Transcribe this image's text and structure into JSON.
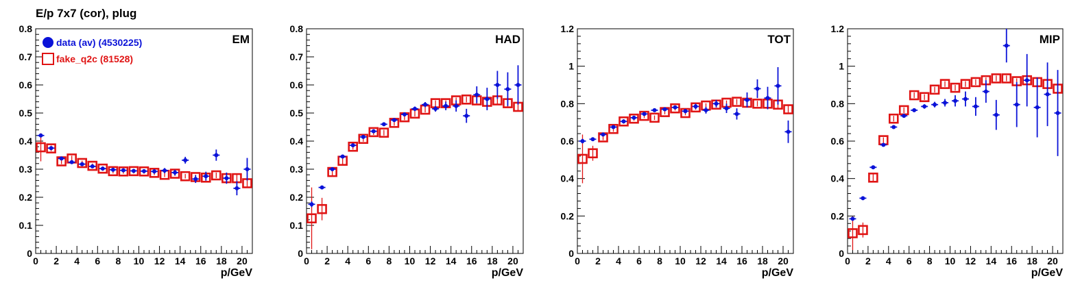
{
  "title": "E/p 7x7 (cor), plug",
  "colors": {
    "data": "#0a12d8",
    "fake": "#e01414",
    "axis": "#000000"
  },
  "legend": [
    {
      "label": "data (av) (4530225)",
      "series": "data",
      "marker": "filled-circle"
    },
    {
      "label": "fake_q2c (81528)",
      "series": "fake",
      "marker": "open-square"
    }
  ],
  "chart_data": [
    {
      "type": "scatter",
      "label": "EM",
      "xlabel": "p/GeV",
      "xlim": [
        0,
        21
      ],
      "ylim": [
        0,
        0.8
      ],
      "xticks": [
        "0",
        "2",
        "4",
        "6",
        "8",
        "10",
        "12",
        "14",
        "16",
        "18",
        "20"
      ],
      "yticks": [
        "0",
        "0.1",
        "0.2",
        "0.3",
        "0.4",
        "0.5",
        "0.6",
        "0.7",
        "0.8"
      ],
      "x": [
        0.5,
        1.5,
        2.5,
        3.5,
        4.5,
        5.5,
        6.5,
        7.5,
        8.5,
        9.5,
        10.5,
        11.5,
        12.5,
        13.5,
        14.5,
        15.5,
        16.5,
        17.5,
        18.5,
        19.5,
        20.5
      ],
      "series": [
        {
          "name": "data (av) (4530225)",
          "values": [
            0.42,
            0.375,
            0.338,
            0.325,
            0.318,
            0.31,
            0.302,
            0.298,
            0.296,
            0.294,
            0.293,
            0.292,
            0.295,
            0.288,
            0.332,
            0.265,
            0.275,
            0.35,
            0.268,
            0.232,
            0.3
          ],
          "errors": [
            0.006,
            0.006,
            0.005,
            0.005,
            0.005,
            0.005,
            0.005,
            0.006,
            0.006,
            0.006,
            0.007,
            0.008,
            0.009,
            0.01,
            0.012,
            0.014,
            0.016,
            0.02,
            0.02,
            0.025,
            0.04
          ]
        },
        {
          "name": "fake_q2c (81528)",
          "values": [
            0.378,
            0.374,
            0.328,
            0.338,
            0.322,
            0.312,
            0.302,
            0.293,
            0.292,
            0.293,
            0.292,
            0.287,
            0.28,
            0.284,
            0.275,
            0.272,
            0.27,
            0.278,
            0.268,
            0.268,
            0.25
          ],
          "errors": [
            0.05,
            0.01,
            0.01,
            0.01,
            0.008,
            0.008,
            0.008,
            0.008,
            0.008,
            0.008,
            0.008,
            0.008,
            0.008,
            0.008,
            0.008,
            0.008,
            0.01,
            0.01,
            0.01,
            0.012,
            0.015
          ]
        }
      ]
    },
    {
      "type": "scatter",
      "label": "HAD",
      "xlabel": "p/GeV",
      "xlim": [
        0,
        21
      ],
      "ylim": [
        0,
        0.8
      ],
      "xticks": [
        "0",
        "2",
        "4",
        "6",
        "8",
        "10",
        "12",
        "14",
        "16",
        "18",
        "20"
      ],
      "yticks": [
        "0",
        "0.1",
        "0.2",
        "0.3",
        "0.4",
        "0.5",
        "0.6",
        "0.7",
        "0.8"
      ],
      "x": [
        0.5,
        1.5,
        2.5,
        3.5,
        4.5,
        5.5,
        6.5,
        7.5,
        8.5,
        9.5,
        10.5,
        11.5,
        12.5,
        13.5,
        14.5,
        15.5,
        16.5,
        17.5,
        18.5,
        19.5,
        20.5
      ],
      "series": [
        {
          "name": "data (av) (4530225)",
          "values": [
            0.175,
            0.235,
            0.3,
            0.345,
            0.385,
            0.415,
            0.435,
            0.46,
            0.475,
            0.495,
            0.515,
            0.53,
            0.515,
            0.525,
            0.525,
            0.49,
            0.565,
            0.55,
            0.6,
            0.585,
            0.6
          ],
          "errors": [
            0.01,
            0.005,
            0.005,
            0.005,
            0.005,
            0.005,
            0.005,
            0.006,
            0.006,
            0.007,
            0.008,
            0.009,
            0.01,
            0.015,
            0.02,
            0.025,
            0.03,
            0.04,
            0.05,
            0.06,
            0.07
          ]
        },
        {
          "name": "fake_q2c (81528)",
          "values": [
            0.125,
            0.158,
            0.29,
            0.33,
            0.38,
            0.408,
            0.432,
            0.43,
            0.465,
            0.485,
            0.498,
            0.512,
            0.535,
            0.535,
            0.545,
            0.548,
            0.545,
            0.54,
            0.545,
            0.535,
            0.522
          ],
          "errors": [
            0.11,
            0.04,
            0.015,
            0.012,
            0.01,
            0.01,
            0.01,
            0.01,
            0.01,
            0.01,
            0.01,
            0.01,
            0.01,
            0.01,
            0.01,
            0.01,
            0.012,
            0.012,
            0.012,
            0.015,
            0.015
          ]
        }
      ]
    },
    {
      "type": "scatter",
      "label": "TOT",
      "xlabel": "p/GeV",
      "xlim": [
        0,
        21
      ],
      "ylim": [
        0,
        1.2
      ],
      "xticks": [
        "0",
        "2",
        "4",
        "6",
        "8",
        "10",
        "12",
        "14",
        "16",
        "18",
        "20"
      ],
      "yticks": [
        "0",
        "0.2",
        "0.4",
        "0.6",
        "0.8",
        "1",
        "1.2"
      ],
      "x": [
        0.5,
        1.5,
        2.5,
        3.5,
        4.5,
        5.5,
        6.5,
        7.5,
        8.5,
        9.5,
        10.5,
        11.5,
        12.5,
        13.5,
        14.5,
        15.5,
        16.5,
        17.5,
        18.5,
        19.5,
        20.5
      ],
      "series": [
        {
          "name": "data (av) (4530225)",
          "values": [
            0.6,
            0.61,
            0.635,
            0.675,
            0.705,
            0.725,
            0.745,
            0.765,
            0.77,
            0.78,
            0.76,
            0.785,
            0.765,
            0.8,
            0.775,
            0.745,
            0.82,
            0.88,
            0.83,
            0.895,
            0.65
          ],
          "errors": [
            0.012,
            0.008,
            0.008,
            0.008,
            0.008,
            0.008,
            0.008,
            0.008,
            0.008,
            0.01,
            0.012,
            0.015,
            0.018,
            0.02,
            0.025,
            0.03,
            0.04,
            0.05,
            0.06,
            0.1,
            0.06
          ]
        },
        {
          "name": "fake_q2c (81528)",
          "values": [
            0.505,
            0.535,
            0.62,
            0.665,
            0.705,
            0.72,
            0.735,
            0.725,
            0.755,
            0.775,
            0.75,
            0.78,
            0.79,
            0.795,
            0.805,
            0.81,
            0.805,
            0.8,
            0.8,
            0.795,
            0.77
          ],
          "errors": [
            0.13,
            0.04,
            0.015,
            0.015,
            0.012,
            0.012,
            0.012,
            0.012,
            0.012,
            0.012,
            0.012,
            0.012,
            0.012,
            0.012,
            0.012,
            0.015,
            0.015,
            0.015,
            0.015,
            0.02,
            0.02
          ]
        }
      ]
    },
    {
      "type": "scatter",
      "label": "MIP",
      "xlabel": "p/GeV",
      "xlim": [
        0,
        21
      ],
      "ylim": [
        0,
        1.2
      ],
      "xticks": [
        "0",
        "2",
        "4",
        "6",
        "8",
        "10",
        "12",
        "14",
        "16",
        "18",
        "20"
      ],
      "yticks": [
        "0",
        "0.2",
        "0.4",
        "0.6",
        "0.8",
        "1",
        "1.2"
      ],
      "x": [
        0.5,
        1.5,
        2.5,
        3.5,
        4.5,
        5.5,
        6.5,
        7.5,
        8.5,
        9.5,
        10.5,
        11.5,
        12.5,
        13.5,
        14.5,
        15.5,
        16.5,
        17.5,
        18.5,
        19.5,
        20.5
      ],
      "series": [
        {
          "name": "data (av) (4530225)",
          "values": [
            0.185,
            0.295,
            0.46,
            0.58,
            0.675,
            0.735,
            0.765,
            0.785,
            0.795,
            0.805,
            0.815,
            0.825,
            0.785,
            0.865,
            0.74,
            1.11,
            0.795,
            0.925,
            0.78,
            0.85,
            0.75
          ],
          "errors": [
            0.01,
            0.008,
            0.008,
            0.008,
            0.008,
            0.008,
            0.01,
            0.012,
            0.015,
            0.02,
            0.03,
            0.04,
            0.05,
            0.06,
            0.08,
            0.09,
            0.12,
            0.14,
            0.16,
            0.17,
            0.23
          ]
        },
        {
          "name": "fake_q2c (81528)",
          "values": [
            0.108,
            0.125,
            0.405,
            0.605,
            0.72,
            0.765,
            0.845,
            0.835,
            0.875,
            0.905,
            0.885,
            0.905,
            0.915,
            0.925,
            0.935,
            0.935,
            0.92,
            0.925,
            0.915,
            0.905,
            0.88
          ],
          "errors": [
            0.09,
            0.04,
            0.02,
            0.015,
            0.015,
            0.015,
            0.015,
            0.015,
            0.015,
            0.015,
            0.015,
            0.015,
            0.015,
            0.015,
            0.015,
            0.015,
            0.015,
            0.015,
            0.02,
            0.02,
            0.02
          ]
        }
      ]
    }
  ]
}
